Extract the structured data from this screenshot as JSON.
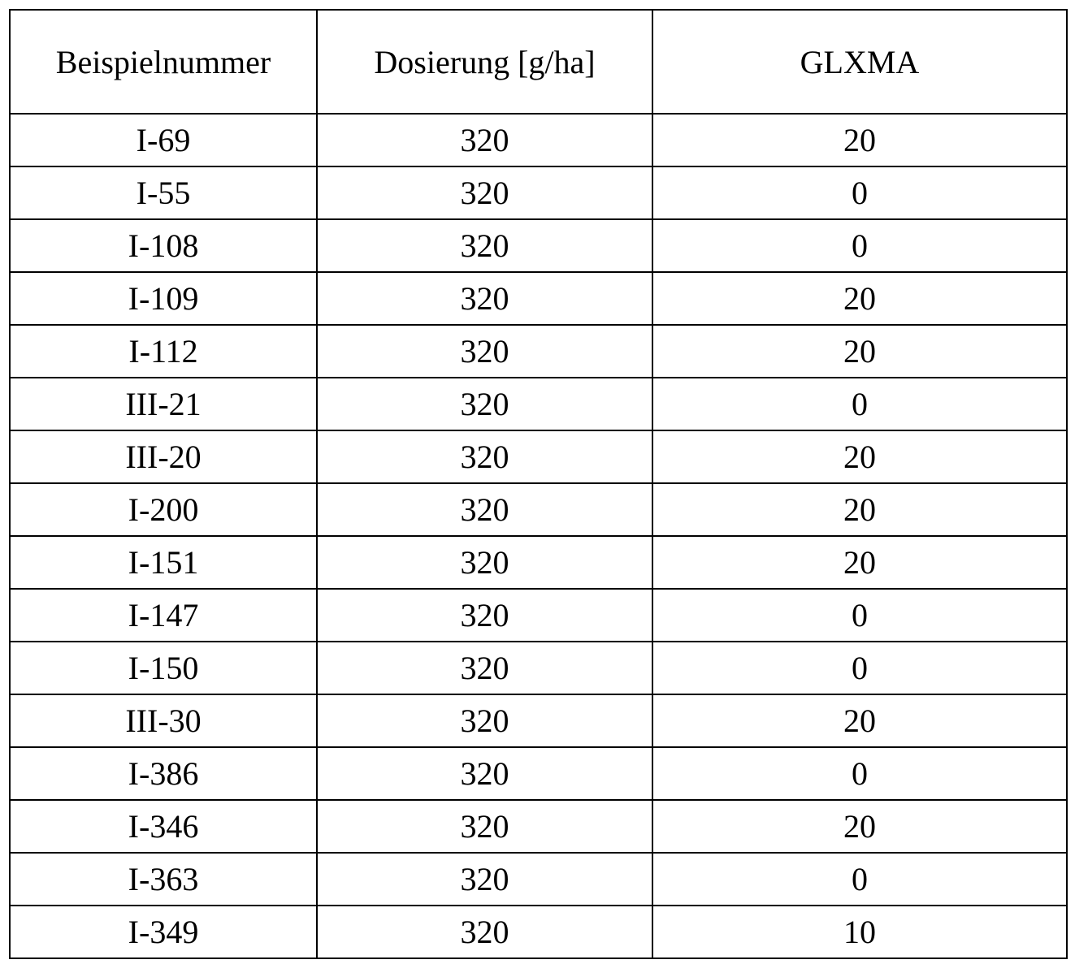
{
  "table": {
    "headers": [
      "Beispielnummer",
      "Dosierung [g/ha]",
      "GLXMA"
    ],
    "rows": [
      [
        "I-69",
        "320",
        "20"
      ],
      [
        "I-55",
        "320",
        "0"
      ],
      [
        "I-108",
        "320",
        "0"
      ],
      [
        "I-109",
        "320",
        "20"
      ],
      [
        "I-112",
        "320",
        "20"
      ],
      [
        "III-21",
        "320",
        "0"
      ],
      [
        "III-20",
        "320",
        "20"
      ],
      [
        "I-200",
        "320",
        "20"
      ],
      [
        "I-151",
        "320",
        "20"
      ],
      [
        "I-147",
        "320",
        "0"
      ],
      [
        "I-150",
        "320",
        "0"
      ],
      [
        "III-30",
        "320",
        "20"
      ],
      [
        "I-386",
        "320",
        "0"
      ],
      [
        "I-346",
        "320",
        "20"
      ],
      [
        "I-363",
        "320",
        "0"
      ],
      [
        "I-349",
        "320",
        "10"
      ]
    ]
  }
}
